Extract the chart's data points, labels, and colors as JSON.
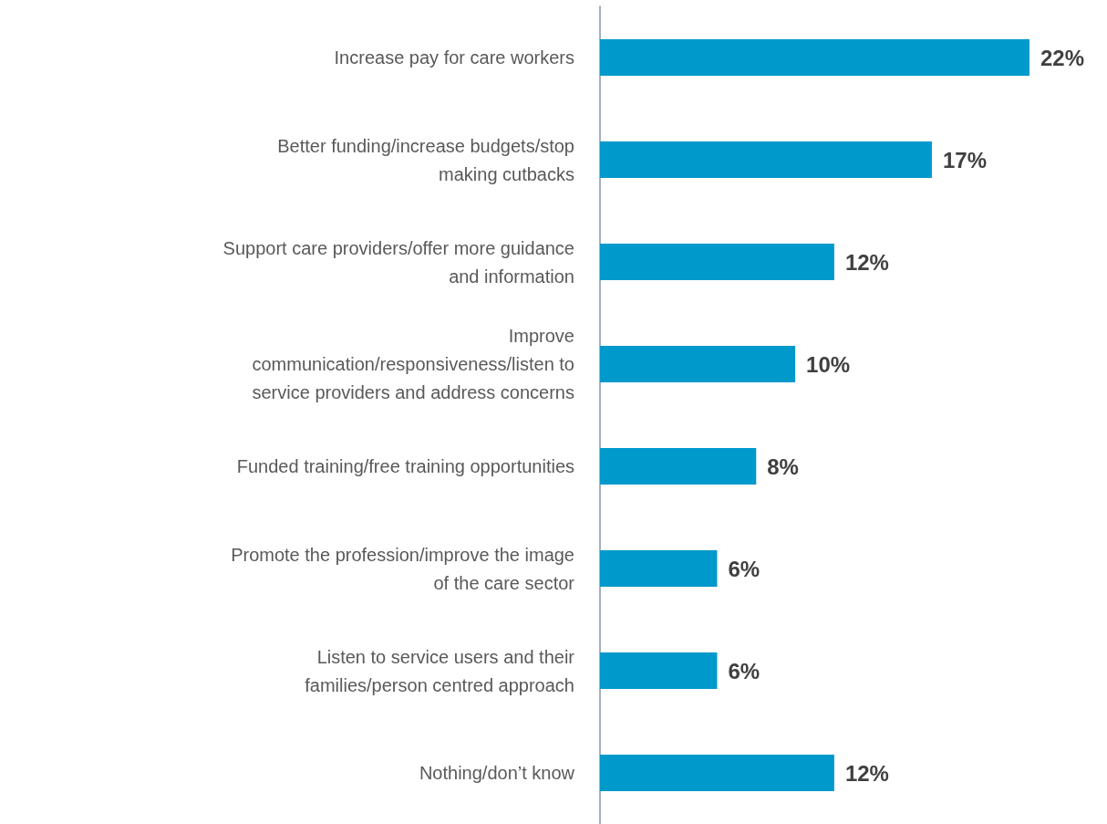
{
  "chart_data": {
    "type": "bar",
    "orientation": "horizontal",
    "categories": [
      "Increase pay for care workers",
      "Better funding/increase budgets/stop\nmaking cutbacks",
      "Support care providers/offer more guidance\nand information",
      "Improve\ncommunication/responsiveness/listen to\nservice providers and address concerns",
      "Funded training/free training opportunities",
      "Promote the profession/improve the image\nof the care sector",
      "Listen to service users and their\nfamilies/person centred approach",
      "Nothing/don’t know"
    ],
    "values": [
      22,
      17,
      12,
      10,
      8,
      6,
      6,
      12
    ],
    "value_labels": [
      "22%",
      "17%",
      "12%",
      "10%",
      "8%",
      "6%",
      "6%",
      "12%"
    ],
    "color": "#0099cc"
  }
}
